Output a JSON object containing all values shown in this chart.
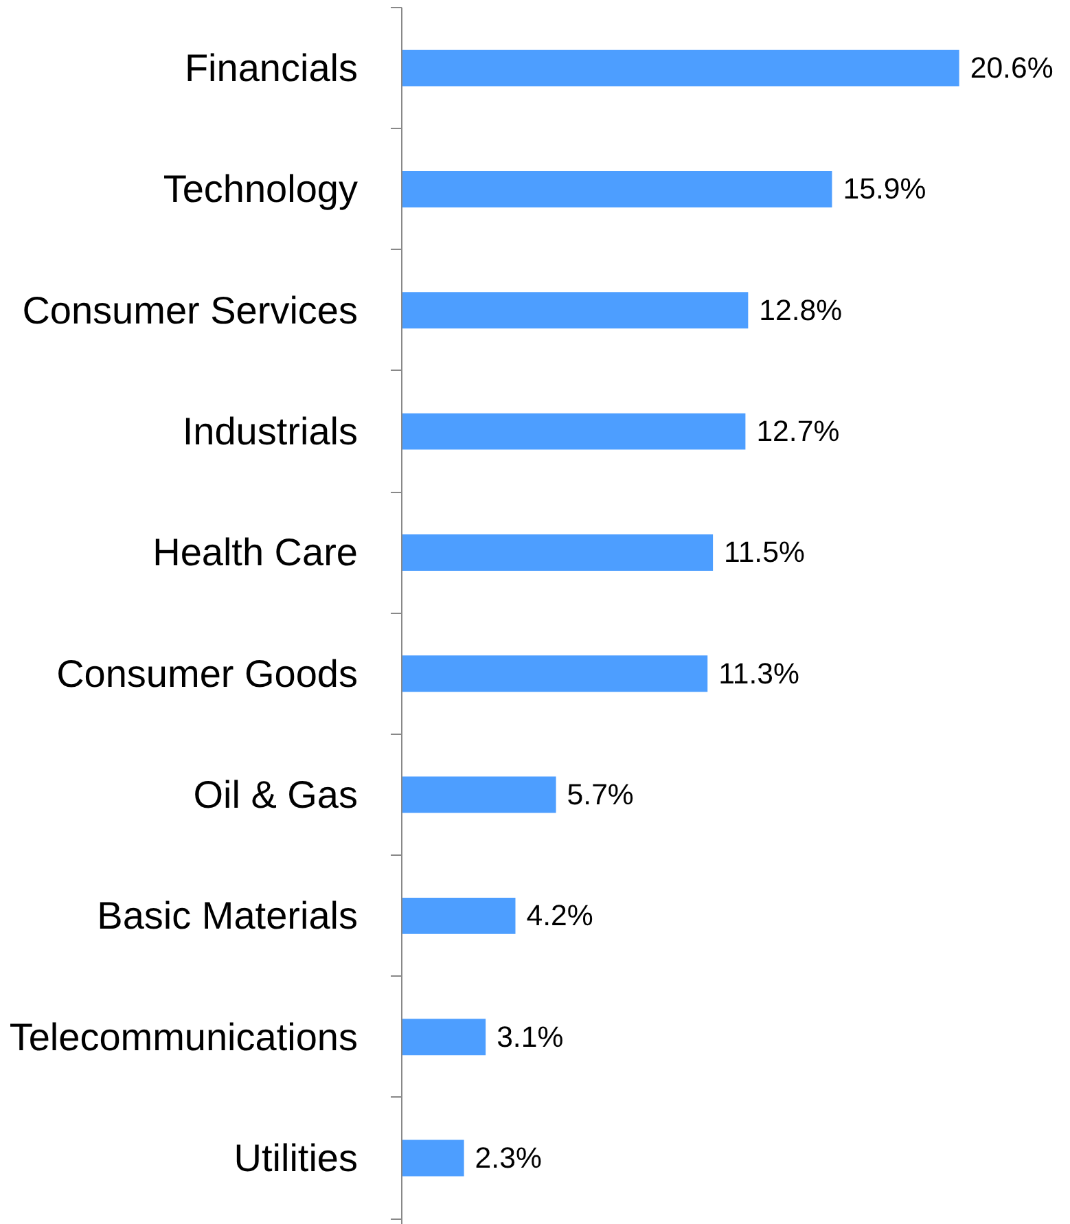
{
  "chart_data": {
    "type": "bar",
    "orientation": "horizontal",
    "categories": [
      "Financials",
      "Technology",
      "Consumer Services",
      "Industrials",
      "Health Care",
      "Consumer Goods",
      "Oil & Gas",
      "Basic Materials",
      "Telecommunications",
      "Utilities"
    ],
    "values": [
      20.6,
      15.9,
      12.8,
      12.7,
      11.5,
      11.3,
      5.7,
      4.2,
      3.1,
      2.3
    ],
    "value_labels": [
      "20.6%",
      "15.9%",
      "12.8%",
      "12.7%",
      "11.5%",
      "11.3%",
      "5.7%",
      "4.2%",
      "3.1%",
      "2.3%"
    ],
    "color": "#4d9eff",
    "grid": false,
    "tick_labels": "y"
  }
}
